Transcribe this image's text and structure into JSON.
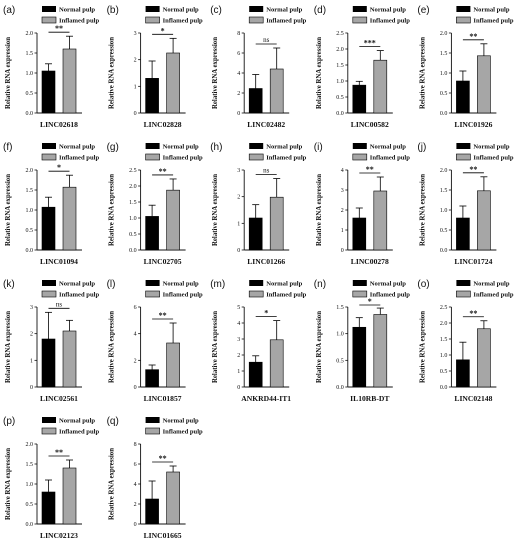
{
  "legend": {
    "normal": "Normal pulp",
    "inflamed": "Inflamed pulp"
  },
  "colors": {
    "normal": "#000000",
    "inflamed": "#a6a6a6",
    "axis": "#111111"
  },
  "chart_data": [
    {
      "id": "a",
      "letter": "(a)",
      "type": "bar",
      "categories": [
        "Normal pulp",
        "Inflamed pulp"
      ],
      "values": [
        1.05,
        1.6
      ],
      "errors": [
        0.18,
        0.32
      ],
      "title": "",
      "xlabel": "LINC02618",
      "ylabel": "Relative RNA  expression",
      "ylim": [
        0,
        2.0
      ],
      "yticks": [
        0.0,
        0.5,
        1.0,
        1.5,
        2.0
      ],
      "tick_labels": [
        "0.0",
        "0.5",
        "1.0",
        "1.5",
        "2.0"
      ],
      "sig": "**"
    },
    {
      "id": "b",
      "letter": "(b)",
      "type": "bar",
      "categories": [
        "Normal pulp",
        "Inflamed pulp"
      ],
      "values": [
        1.3,
        2.25
      ],
      "errors": [
        0.65,
        0.55
      ],
      "title": "",
      "xlabel": "LINC02828",
      "ylabel": "Relative RNA  expression",
      "ylim": [
        0,
        3
      ],
      "yticks": [
        0,
        1,
        2,
        3
      ],
      "tick_labels": [
        "0",
        "1",
        "2",
        "3"
      ],
      "sig": "*"
    },
    {
      "id": "c",
      "letter": "(c)",
      "type": "bar",
      "categories": [
        "Normal pulp",
        "Inflamed pulp"
      ],
      "values": [
        2.45,
        4.4
      ],
      "errors": [
        1.4,
        2.1
      ],
      "title": "",
      "xlabel": "LINC02482",
      "ylabel": "Relative RNA  expression",
      "ylim": [
        0,
        8
      ],
      "yticks": [
        0,
        2,
        4,
        6,
        8
      ],
      "tick_labels": [
        "0",
        "2",
        "4",
        "6",
        "8"
      ],
      "sig": "ns"
    },
    {
      "id": "d",
      "letter": "(d)",
      "type": "bar",
      "categories": [
        "Normal pulp",
        "Inflamed pulp"
      ],
      "values": [
        0.87,
        1.65
      ],
      "errors": [
        0.12,
        0.3
      ],
      "title": "",
      "xlabel": "LINC00582",
      "ylabel": "Relative RNA  expression",
      "ylim": [
        0,
        2.5
      ],
      "yticks": [
        0.0,
        0.5,
        1.0,
        1.5,
        2.0,
        2.5
      ],
      "tick_labels": [
        "0.0",
        "0.5",
        "1.0",
        "1.5",
        "2.0",
        "2.5"
      ],
      "sig": "***"
    },
    {
      "id": "e",
      "letter": "(e)",
      "type": "bar",
      "categories": [
        "Normal pulp",
        "Inflamed pulp"
      ],
      "values": [
        0.8,
        1.43
      ],
      "errors": [
        0.25,
        0.3
      ],
      "title": "",
      "xlabel": "LINC01926",
      "ylabel": "Relative RNA  expression",
      "ylim": [
        0,
        2.0
      ],
      "yticks": [
        0.0,
        0.5,
        1.0,
        1.5,
        2.0
      ],
      "tick_labels": [
        "0.0",
        "0.5",
        "1.0",
        "1.5",
        "2.0"
      ],
      "sig": "**"
    },
    {
      "id": "f",
      "letter": "(f)",
      "type": "bar",
      "categories": [
        "Normal pulp",
        "Inflamed pulp"
      ],
      "values": [
        1.07,
        1.57
      ],
      "errors": [
        0.25,
        0.3
      ],
      "title": "",
      "xlabel": "LINC01094",
      "ylabel": "Relative RNA  expression",
      "ylim": [
        0,
        2.0
      ],
      "yticks": [
        0.0,
        0.5,
        1.0,
        1.5,
        2.0
      ],
      "tick_labels": [
        "0.0",
        "0.5",
        "1.0",
        "1.5",
        "2.0"
      ],
      "sig": "*"
    },
    {
      "id": "g",
      "letter": "(g)",
      "type": "bar",
      "categories": [
        "Normal pulp",
        "Inflamed pulp"
      ],
      "values": [
        1.05,
        1.87
      ],
      "errors": [
        0.35,
        0.35
      ],
      "title": "",
      "xlabel": "LINC02705",
      "ylabel": "Relative RNA  expression",
      "ylim": [
        0,
        2.5
      ],
      "yticks": [
        0.0,
        0.5,
        1.0,
        1.5,
        2.0,
        2.5
      ],
      "tick_labels": [
        "0.0",
        "0.5",
        "1.0",
        "1.5",
        "2.0",
        "2.5"
      ],
      "sig": "**"
    },
    {
      "id": "h",
      "letter": "(h)",
      "type": "bar",
      "categories": [
        "Normal pulp",
        "Inflamed pulp"
      ],
      "values": [
        1.2,
        1.98
      ],
      "errors": [
        0.5,
        0.7
      ],
      "title": "",
      "xlabel": "LINC01266",
      "ylabel": "Relative RNA  expression",
      "ylim": [
        0,
        3
      ],
      "yticks": [
        0,
        1,
        2,
        3
      ],
      "tick_labels": [
        "0",
        "1",
        "2",
        "3"
      ],
      "sig": "ns"
    },
    {
      "id": "i",
      "letter": "(i)",
      "type": "bar",
      "categories": [
        "Normal pulp",
        "Inflamed pulp"
      ],
      "values": [
        1.6,
        2.95
      ],
      "errors": [
        0.5,
        0.7
      ],
      "title": "",
      "xlabel": "LINC00278",
      "ylabel": "Relative RNA  expression",
      "ylim": [
        0,
        4
      ],
      "yticks": [
        0,
        1,
        2,
        3,
        4
      ],
      "tick_labels": [
        "0",
        "1",
        "2",
        "3",
        "4"
      ],
      "sig": "**"
    },
    {
      "id": "j",
      "letter": "(j)",
      "type": "bar",
      "categories": [
        "Normal pulp",
        "Inflamed pulp"
      ],
      "values": [
        0.8,
        1.48
      ],
      "errors": [
        0.3,
        0.35
      ],
      "title": "",
      "xlabel": "LINC01724",
      "ylabel": "Relative RNA  expression",
      "ylim": [
        0,
        2.0
      ],
      "yticks": [
        0.0,
        0.5,
        1.0,
        1.5,
        2.0
      ],
      "tick_labels": [
        "0.0",
        "0.5",
        "1.0",
        "1.5",
        "2.0"
      ],
      "sig": "**"
    },
    {
      "id": "k",
      "letter": "(k)",
      "type": "bar",
      "categories": [
        "Normal pulp",
        "Inflamed pulp"
      ],
      "values": [
        1.8,
        2.1
      ],
      "errors": [
        1.0,
        0.4
      ],
      "title": "",
      "xlabel": "LINC02561",
      "ylabel": "Relative RNA  expression",
      "ylim": [
        0,
        3
      ],
      "yticks": [
        0,
        1,
        2,
        3
      ],
      "tick_labels": [
        "0",
        "1",
        "2",
        "3"
      ],
      "sig": "ns"
    },
    {
      "id": "l",
      "letter": "(l)",
      "type": "bar",
      "categories": [
        "Normal pulp",
        "Inflamed pulp"
      ],
      "values": [
        1.3,
        3.3
      ],
      "errors": [
        0.35,
        1.5
      ],
      "title": "",
      "xlabel": "LINC01857",
      "ylabel": "Relative RNA  expression",
      "ylim": [
        0,
        6
      ],
      "yticks": [
        0,
        2,
        4,
        6
      ],
      "tick_labels": [
        "0",
        "2",
        "4",
        "6"
      ],
      "sig": "**"
    },
    {
      "id": "m",
      "letter": "(m)",
      "type": "bar",
      "categories": [
        "Normal pulp",
        "Inflamed pulp"
      ],
      "values": [
        1.55,
        2.95
      ],
      "errors": [
        0.4,
        1.2
      ],
      "title": "",
      "xlabel": "ANKRD44-IT1",
      "ylabel": "Relative RNA  expression",
      "ylim": [
        0,
        5
      ],
      "yticks": [
        0,
        1,
        2,
        3,
        4,
        5
      ],
      "tick_labels": [
        "0",
        "1",
        "2",
        "3",
        "4",
        "5"
      ],
      "sig": "*"
    },
    {
      "id": "n",
      "letter": "(n)",
      "type": "bar",
      "categories": [
        "Normal pulp",
        "Inflamed pulp"
      ],
      "values": [
        1.12,
        1.36
      ],
      "errors": [
        0.18,
        0.12
      ],
      "title": "",
      "xlabel": "IL10RB-DT",
      "ylabel": "Relative RNA  expression",
      "ylim": [
        0,
        1.5
      ],
      "yticks": [
        0.0,
        0.5,
        1.0,
        1.5
      ],
      "tick_labels": [
        "0.0",
        "0.5",
        "1.0",
        "1.5"
      ],
      "sig": "*"
    },
    {
      "id": "o",
      "letter": "(o)",
      "type": "bar",
      "categories": [
        "Normal pulp",
        "Inflamed pulp"
      ],
      "values": [
        0.85,
        1.82
      ],
      "errors": [
        0.55,
        0.25
      ],
      "title": "",
      "xlabel": "LINC02148",
      "ylabel": "Relative RNA  expression",
      "ylim": [
        0,
        2.5
      ],
      "yticks": [
        0.0,
        0.5,
        1.0,
        1.5,
        2.0,
        2.5
      ],
      "tick_labels": [
        "0.0",
        "0.5",
        "1.0",
        "1.5",
        "2.0",
        "2.5"
      ],
      "sig": "**"
    },
    {
      "id": "p",
      "letter": "(p)",
      "type": "bar",
      "categories": [
        "Normal pulp",
        "Inflamed pulp"
      ],
      "values": [
        0.8,
        1.4
      ],
      "errors": [
        0.3,
        0.2
      ],
      "title": "",
      "xlabel": "LINC02123",
      "ylabel": "Relative RNA  expression",
      "ylim": [
        0,
        2.0
      ],
      "yticks": [
        0.0,
        0.5,
        1.0,
        1.5,
        2.0
      ],
      "tick_labels": [
        "0.0",
        "0.5",
        "1.0",
        "1.5",
        "2.0"
      ],
      "sig": "**"
    },
    {
      "id": "q",
      "letter": "(q)",
      "type": "bar",
      "categories": [
        "Normal pulp",
        "Inflamed pulp"
      ],
      "values": [
        2.5,
        5.2
      ],
      "errors": [
        1.8,
        0.6
      ],
      "title": "",
      "xlabel": "LINC01665",
      "ylabel": "Relative RNA  expression",
      "ylim": [
        0,
        8
      ],
      "yticks": [
        0,
        2,
        4,
        6,
        8
      ],
      "tick_labels": [
        "0",
        "2",
        "4",
        "6",
        "8"
      ],
      "sig": "**"
    }
  ]
}
